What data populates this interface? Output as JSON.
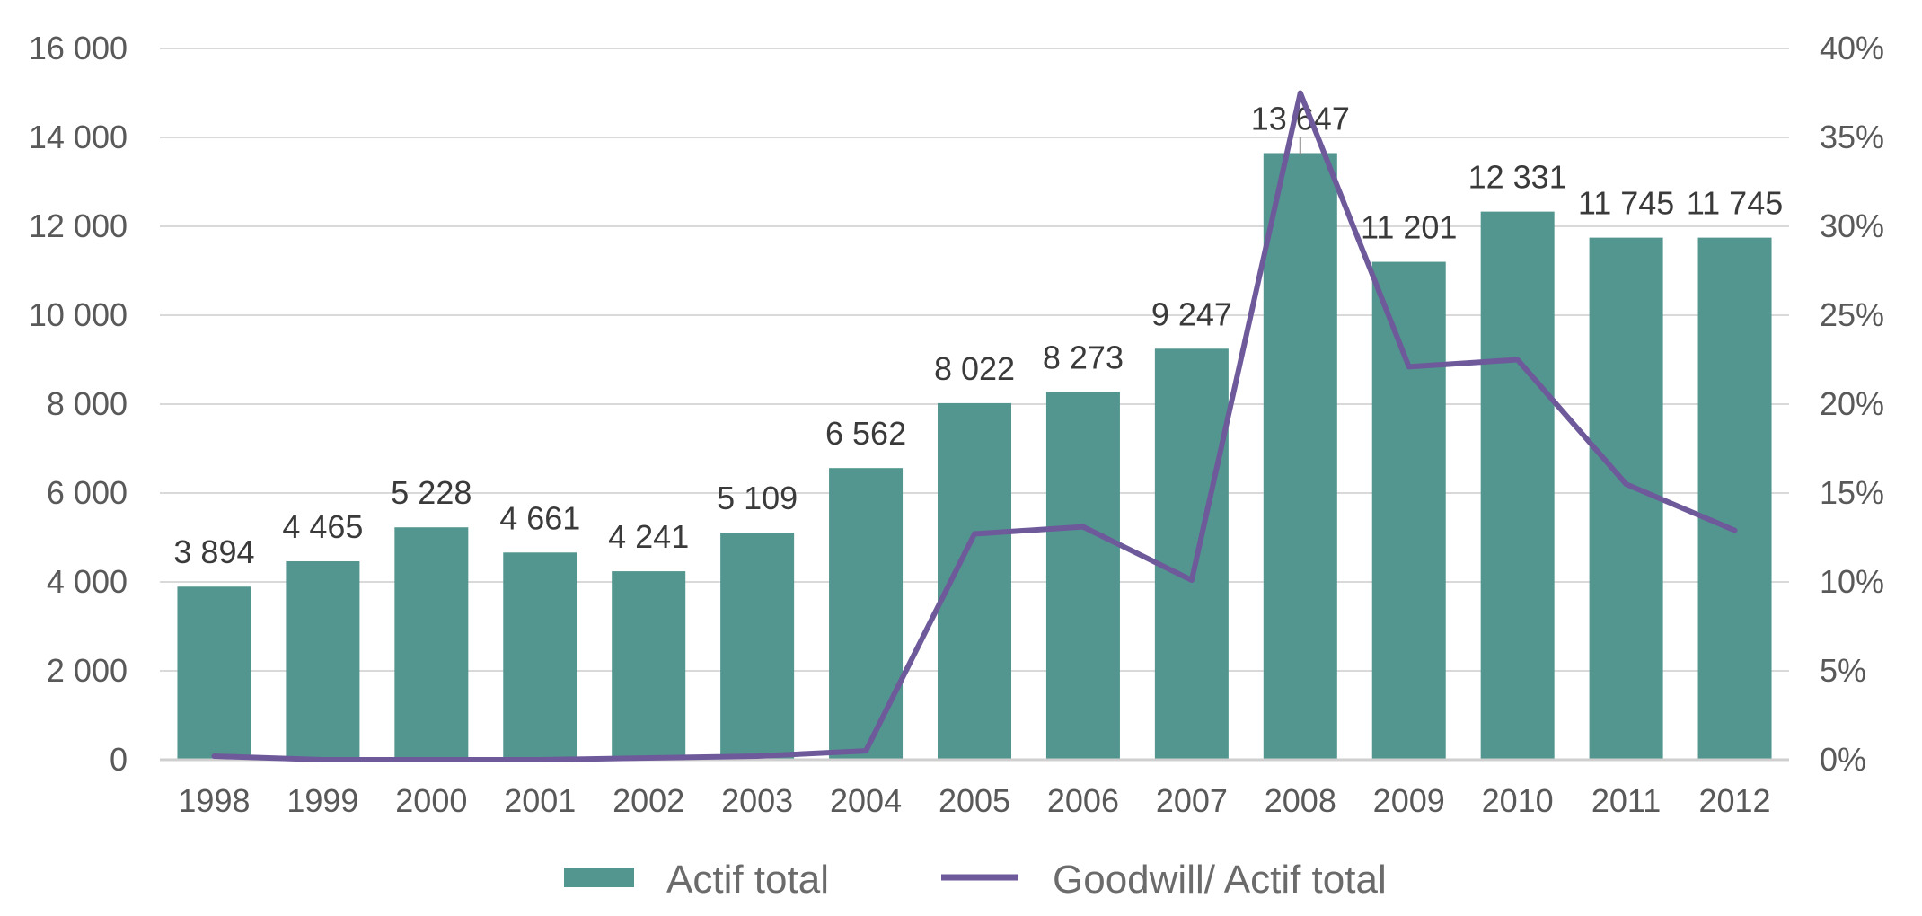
{
  "chart_data": {
    "type": "bar",
    "categories": [
      "1998",
      "1999",
      "2000",
      "2001",
      "2002",
      "2003",
      "2004",
      "2005",
      "2006",
      "2007",
      "2008",
      "2009",
      "2010",
      "2011",
      "2012"
    ],
    "series": [
      {
        "name": "Actif total",
        "type": "bar",
        "axis": "left",
        "color": "#52968F",
        "values": [
          3894,
          4465,
          5228,
          4661,
          4241,
          5109,
          6562,
          8022,
          8273,
          9247,
          13647,
          11201,
          12331,
          11745,
          11745
        ],
        "labels": [
          "3 894",
          "4 465",
          "5 228",
          "4 661",
          "4 241",
          "5 109",
          "6 562",
          "8 022",
          "8 273",
          "9 247",
          "13 647",
          "11 201",
          "12 331",
          "11 745",
          "11 745"
        ]
      },
      {
        "name": "Goodwill/ Actif total",
        "type": "line",
        "axis": "right",
        "color": "#6E5A9A",
        "values": [
          0.2,
          0.0,
          0.0,
          0.0,
          0.1,
          0.2,
          0.5,
          12.7,
          13.1,
          10.1,
          37.5,
          22.1,
          22.5,
          15.5,
          12.9
        ]
      }
    ],
    "y_left": {
      "ylim": [
        0,
        16000
      ],
      "ticks": [
        0,
        2000,
        4000,
        6000,
        8000,
        10000,
        12000,
        14000,
        16000
      ],
      "tick_labels": [
        "0",
        "2 000",
        "4 000",
        "6 000",
        "8 000",
        "10 000",
        "12 000",
        "14 000",
        "16 000"
      ]
    },
    "y_right": {
      "ylim": [
        0,
        40
      ],
      "ticks": [
        0,
        5,
        10,
        15,
        20,
        25,
        30,
        35,
        40
      ],
      "tick_labels": [
        "0%",
        "5%",
        "10%",
        "15%",
        "20%",
        "25%",
        "30%",
        "35%",
        "40%"
      ]
    },
    "grid": true,
    "legend": {
      "position": "bottom"
    }
  }
}
